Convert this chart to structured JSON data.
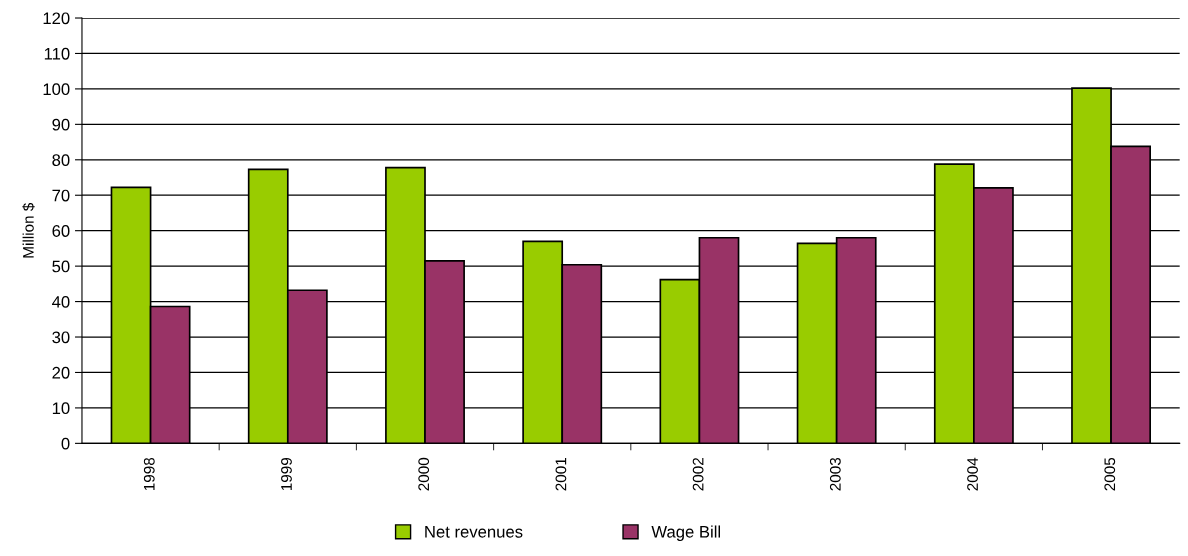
{
  "chart_data": {
    "type": "bar",
    "ylabel": "Million $",
    "categories": [
      "1998",
      "1999",
      "2000",
      "2001",
      "2002",
      "2003",
      "2004",
      "2005"
    ],
    "series": [
      {
        "name": "Net revenues",
        "color": "#99cc00",
        "values": [
          72.2,
          77.3,
          77.8,
          57.0,
          46.2,
          56.4,
          78.8,
          100.2
        ]
      },
      {
        "name": "Wage Bill",
        "color": "#993366",
        "values": [
          38.6,
          43.2,
          51.5,
          50.4,
          58.0,
          58.0,
          72.1,
          83.8
        ]
      }
    ],
    "ylim": [
      0,
      120
    ],
    "yticks": [
      0,
      10,
      20,
      30,
      40,
      50,
      60,
      70,
      80,
      90,
      100,
      110,
      120
    ],
    "grid": "y",
    "legend": "bottom"
  }
}
